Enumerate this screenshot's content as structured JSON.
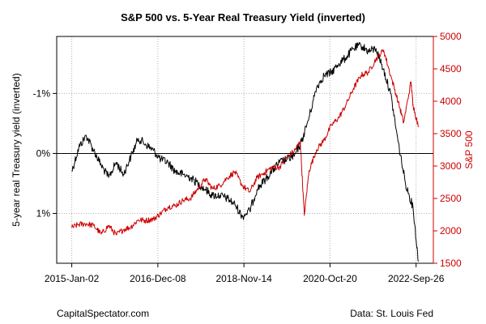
{
  "chart_data": {
    "type": "line",
    "title": "S&P 500 vs. 5-Year Real Treasury Yield (inverted)",
    "xlabel": "",
    "ylabel_left": "5-year real Treasury yield (inverted)",
    "ylabel_right": "S&P 500",
    "x_tick_labels": [
      "2015-Jan-02",
      "2016-Dec-08",
      "2018-Nov-14",
      "2020-Oct-20",
      "2022-Sep-26"
    ],
    "x_tick_dates": [
      "2015-01-02",
      "2016-12-08",
      "2018-11-14",
      "2020-10-20",
      "2022-09-26"
    ],
    "xlim": [
      "2015-01-02",
      "2022-10-14"
    ],
    "left_axis": {
      "inverted": true,
      "ylim": [
        -1.95,
        1.83
      ],
      "ticks": [
        -1,
        0,
        1
      ],
      "tick_labels": [
        "-1%",
        "0%",
        "1%"
      ],
      "reference_line": 0
    },
    "right_axis": {
      "ylim": [
        1500,
        5000
      ],
      "ticks": [
        1500,
        2000,
        2500,
        3000,
        3500,
        4000,
        4500,
        5000
      ],
      "tick_labels": [
        "1500",
        "2000",
        "2500",
        "3000",
        "3500",
        "4000",
        "4500",
        "5000"
      ]
    },
    "grid": true,
    "series": [
      {
        "axis": "left",
        "color": "#000000",
        "x": [
          "2015-01-02",
          "2015-03-01",
          "2015-05-01",
          "2015-07-01",
          "2015-09-01",
          "2015-11-01",
          "2016-01-01",
          "2016-03-01",
          "2016-05-01",
          "2016-07-01",
          "2016-09-01",
          "2016-11-01",
          "2017-01-01",
          "2017-03-01",
          "2017-05-01",
          "2017-07-01",
          "2017-09-01",
          "2017-11-01",
          "2018-01-01",
          "2018-03-01",
          "2018-05-01",
          "2018-07-01",
          "2018-09-01",
          "2018-11-01",
          "2019-01-01",
          "2019-03-01",
          "2019-05-01",
          "2019-07-01",
          "2019-09-01",
          "2019-11-01",
          "2020-01-01",
          "2020-03-01",
          "2020-05-01",
          "2020-07-01",
          "2020-09-01",
          "2020-11-01",
          "2021-01-01",
          "2021-03-01",
          "2021-05-01",
          "2021-07-01",
          "2021-09-01",
          "2021-11-01",
          "2022-01-01",
          "2022-03-01",
          "2022-05-01",
          "2022-07-01",
          "2022-09-01",
          "2022-10-14"
        ],
        "values": [
          0.3,
          -0.1,
          -0.3,
          -0.05,
          0.2,
          0.4,
          0.15,
          0.35,
          0.05,
          -0.25,
          -0.15,
          -0.05,
          0.1,
          0.15,
          0.3,
          0.35,
          0.4,
          0.5,
          0.6,
          0.7,
          0.7,
          0.75,
          0.85,
          1.05,
          0.95,
          0.6,
          0.45,
          0.3,
          0.15,
          0.1,
          0.05,
          -0.2,
          -0.6,
          -1.1,
          -1.3,
          -1.35,
          -1.5,
          -1.6,
          -1.75,
          -1.8,
          -1.7,
          -1.75,
          -1.4,
          -1.0,
          -0.2,
          0.5,
          0.9,
          1.8
        ]
      },
      {
        "axis": "right",
        "color": "#cc0000",
        "x": [
          "2015-01-02",
          "2015-03-01",
          "2015-05-01",
          "2015-07-01",
          "2015-09-01",
          "2015-11-01",
          "2016-01-01",
          "2016-03-01",
          "2016-05-01",
          "2016-07-01",
          "2016-09-01",
          "2016-11-01",
          "2017-01-01",
          "2017-03-01",
          "2017-05-01",
          "2017-07-01",
          "2017-09-01",
          "2017-11-01",
          "2018-01-01",
          "2018-03-01",
          "2018-05-01",
          "2018-07-01",
          "2018-09-01",
          "2018-11-01",
          "2019-01-01",
          "2019-03-01",
          "2019-05-01",
          "2019-07-01",
          "2019-09-01",
          "2019-11-01",
          "2020-01-01",
          "2020-02-19",
          "2020-03-23",
          "2020-05-01",
          "2020-07-01",
          "2020-09-01",
          "2020-11-01",
          "2021-01-01",
          "2021-03-01",
          "2021-05-01",
          "2021-07-01",
          "2021-09-01",
          "2021-11-01",
          "2022-01-03",
          "2022-03-01",
          "2022-05-01",
          "2022-06-16",
          "2022-08-15",
          "2022-09-01",
          "2022-10-14"
        ],
        "values": [
          2050,
          2100,
          2110,
          2080,
          1950,
          2080,
          1940,
          2020,
          2060,
          2170,
          2160,
          2180,
          2270,
          2370,
          2390,
          2470,
          2500,
          2650,
          2800,
          2650,
          2700,
          2820,
          2910,
          2700,
          2600,
          2820,
          2900,
          2980,
          2980,
          3140,
          3230,
          3380,
          2240,
          2930,
          3250,
          3400,
          3630,
          3750,
          3950,
          4200,
          4400,
          4450,
          4650,
          4790,
          4400,
          4000,
          3670,
          4300,
          3950,
          3600
        ]
      }
    ]
  },
  "footer": {
    "source_left": "CapitalSpectator.com",
    "source_right": "Data: St. Louis Fed"
  }
}
